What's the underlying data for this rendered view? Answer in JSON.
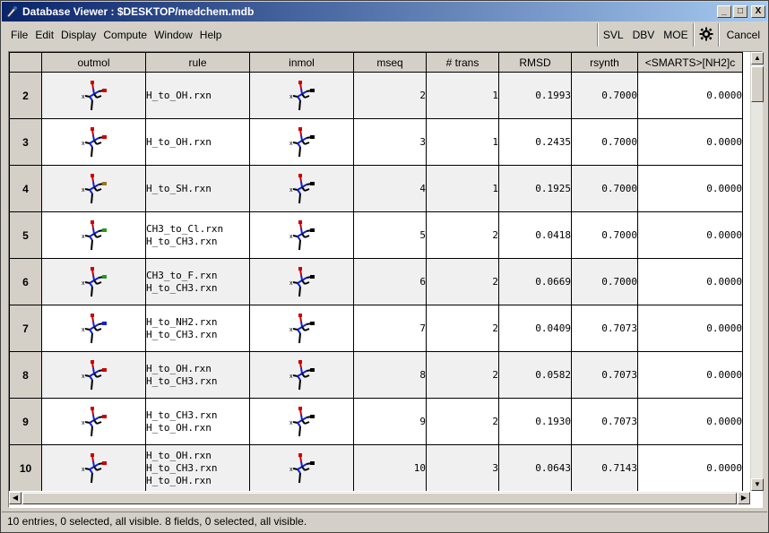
{
  "window": {
    "title": "Database Viewer : $DESKTOP/medchem.mdb",
    "buttons": {
      "minimize": "_",
      "maximize": "□",
      "close": "X"
    }
  },
  "menu": [
    {
      "label": "File"
    },
    {
      "label": "Edit"
    },
    {
      "label": "Display"
    },
    {
      "label": "Compute"
    },
    {
      "label": "Window"
    },
    {
      "label": "Help"
    }
  ],
  "toolbar": {
    "svl": "SVL",
    "dbv": "DBV",
    "moe": "MOE",
    "settings_icon": "gear-icon",
    "cancel": "Cancel"
  },
  "table": {
    "columns": [
      "outmol",
      "rule",
      "inmol",
      "mseq",
      "# trans",
      "RMSD",
      "rsynth",
      "<SMARTS>[NH2]c"
    ],
    "rows": [
      {
        "id": "2",
        "rule": [
          "H_to_OH.rxn"
        ],
        "mseq": "2",
        "trans": "1",
        "rmsd": "0.1993",
        "rsynth": "0.7000",
        "smarts": "0.0000",
        "sub": "#cc0000"
      },
      {
        "id": "3",
        "rule": [
          "H_to_OH.rxn"
        ],
        "mseq": "3",
        "trans": "1",
        "rmsd": "0.2435",
        "rsynth": "0.7000",
        "smarts": "0.0000",
        "sub": "#cc0000"
      },
      {
        "id": "4",
        "rule": [
          "H_to_SH.rxn"
        ],
        "mseq": "4",
        "trans": "1",
        "rmsd": "0.1925",
        "rsynth": "0.7000",
        "smarts": "0.0000",
        "sub": "#997722"
      },
      {
        "id": "5",
        "rule": [
          "CH3_to_Cl.rxn",
          "H_to_CH3.rxn"
        ],
        "mseq": "5",
        "trans": "2",
        "rmsd": "0.0418",
        "rsynth": "0.7000",
        "smarts": "0.0000",
        "sub": "#229922"
      },
      {
        "id": "6",
        "rule": [
          "CH3_to_F.rxn",
          "H_to_CH3.rxn"
        ],
        "mseq": "6",
        "trans": "2",
        "rmsd": "0.0669",
        "rsynth": "0.7000",
        "smarts": "0.0000",
        "sub": "#229922"
      },
      {
        "id": "7",
        "rule": [
          "H_to_NH2.rxn",
          "H_to_CH3.rxn"
        ],
        "mseq": "7",
        "trans": "2",
        "rmsd": "0.0409",
        "rsynth": "0.7073",
        "smarts": "0.0000",
        "sub": "#1122cc"
      },
      {
        "id": "8",
        "rule": [
          "H_to_OH.rxn",
          "H_to_CH3.rxn"
        ],
        "mseq": "8",
        "trans": "2",
        "rmsd": "0.0582",
        "rsynth": "0.7073",
        "smarts": "0.0000",
        "sub": "#cc0000"
      },
      {
        "id": "9",
        "rule": [
          "H_to_CH3.rxn",
          "H_to_OH.rxn"
        ],
        "mseq": "9",
        "trans": "2",
        "rmsd": "0.1930",
        "rsynth": "0.7073",
        "smarts": "0.0000",
        "sub": "#cc0000"
      },
      {
        "id": "10",
        "rule": [
          "H_to_OH.rxn",
          "H_to_CH3.rxn",
          "H_to_OH.rxn"
        ],
        "mseq": "10",
        "trans": "3",
        "rmsd": "0.0643",
        "rsynth": "0.7143",
        "smarts": "0.0000",
        "sub": "#cc0000"
      }
    ]
  },
  "scroll": {
    "left_arrow": "◀",
    "right_arrow": "▶",
    "up_arrow": "▲",
    "down_arrow": "▼"
  },
  "status": "10 entries, 0 selected, all visible. 8 fields, 0 selected, all visible."
}
